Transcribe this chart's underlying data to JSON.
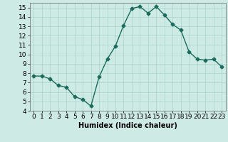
{
  "x": [
    0,
    1,
    2,
    3,
    4,
    5,
    6,
    7,
    8,
    9,
    10,
    11,
    12,
    13,
    14,
    15,
    16,
    17,
    18,
    19,
    20,
    21,
    22,
    23
  ],
  "y": [
    7.7,
    7.7,
    7.4,
    6.7,
    6.5,
    5.5,
    5.2,
    4.5,
    7.6,
    9.5,
    10.9,
    13.1,
    14.9,
    15.1,
    14.4,
    15.1,
    14.2,
    13.2,
    12.6,
    10.3,
    9.5,
    9.4,
    9.5,
    8.7
  ],
  "line_color": "#1a6b5e",
  "marker": "D",
  "marker_size": 2.5,
  "line_width": 1.0,
  "bg_color": "#ceeae4",
  "grid_color": "#aad4cc",
  "xlabel": "Humidex (Indice chaleur)",
  "xlim": [
    -0.5,
    23.5
  ],
  "ylim": [
    4,
    15.5
  ],
  "yticks": [
    4,
    5,
    6,
    7,
    8,
    9,
    10,
    11,
    12,
    13,
    14,
    15
  ],
  "xticks": [
    0,
    1,
    2,
    3,
    4,
    5,
    6,
    7,
    8,
    9,
    10,
    11,
    12,
    13,
    14,
    15,
    16,
    17,
    18,
    19,
    20,
    21,
    22,
    23
  ],
  "xlabel_fontsize": 7,
  "tick_fontsize": 6.5
}
